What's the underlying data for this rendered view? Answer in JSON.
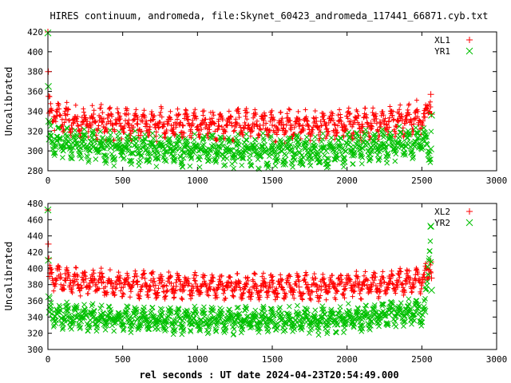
{
  "title": "HIRES continuum, andromeda, file:Skynet_60423_andromeda_117441_66871.cyb.txt",
  "xlabel": "rel seconds : UT date 2024-04-23T20:54:49.000",
  "colors": {
    "red": "#ff0000",
    "green": "#00c000",
    "frame": "#000000"
  },
  "chart_data": [
    {
      "type": "scatter",
      "ylabel": "Uncalibrated",
      "xlim": [
        0,
        3000
      ],
      "ylim": [
        280,
        420
      ],
      "xticks": [
        0,
        500,
        1000,
        1500,
        2000,
        2500,
        3000
      ],
      "yticks": [
        280,
        300,
        320,
        340,
        360,
        380,
        400,
        420
      ],
      "legend_position": "top-right",
      "grid": false,
      "series": [
        {
          "name": "XL1",
          "marker": "plus",
          "color": "#ff0000",
          "x": [
            0,
            3,
            6,
            10,
            60,
            120,
            180,
            240,
            300,
            360,
            420,
            480,
            540,
            600,
            660,
            720,
            780,
            840,
            900,
            960,
            1020,
            1080,
            1140,
            1200,
            1260,
            1320,
            1380,
            1440,
            1500,
            1560,
            1620,
            1680,
            1740,
            1800,
            1860,
            1920,
            1980,
            2040,
            2100,
            2160,
            2220,
            2280,
            2340,
            2400,
            2460,
            2520,
            2560,
            2565
          ],
          "y": [
            420,
            380,
            355,
            338,
            335,
            332,
            331,
            330,
            329,
            329,
            328,
            328,
            327,
            327,
            327,
            327,
            327,
            326,
            326,
            326,
            326,
            326,
            325,
            326,
            326,
            326,
            325,
            326,
            326,
            326,
            326,
            325,
            325,
            325,
            326,
            326,
            326,
            327,
            327,
            328,
            329,
            330,
            331,
            332,
            333,
            334,
            357,
            337
          ]
        },
        {
          "name": "YR1",
          "marker": "cross",
          "color": "#00c000",
          "x": [
            0,
            3,
            6,
            10,
            60,
            120,
            180,
            240,
            300,
            360,
            420,
            480,
            540,
            600,
            660,
            720,
            780,
            840,
            900,
            960,
            1020,
            1080,
            1140,
            1200,
            1260,
            1320,
            1380,
            1440,
            1500,
            1560,
            1620,
            1680,
            1740,
            1800,
            1860,
            1920,
            1980,
            2040,
            2100,
            2160,
            2220,
            2280,
            2340,
            2400,
            2460,
            2520,
            2560,
            2565
          ],
          "y": [
            419,
            365,
            330,
            312,
            310,
            307,
            306,
            305,
            304,
            304,
            303,
            303,
            302,
            302,
            302,
            302,
            302,
            301,
            301,
            301,
            301,
            301,
            300,
            300,
            300,
            300,
            299,
            300,
            300,
            300,
            300,
            299,
            299,
            299,
            300,
            300,
            301,
            302,
            303,
            304,
            305,
            306,
            307,
            308,
            309,
            310,
            302,
            336
          ]
        }
      ]
    },
    {
      "type": "scatter",
      "ylabel": "Uncalibrated",
      "xlim": [
        0,
        3000
      ],
      "ylim": [
        300,
        480
      ],
      "xticks": [
        0,
        500,
        1000,
        1500,
        2000,
        2500,
        3000
      ],
      "yticks": [
        300,
        320,
        340,
        360,
        380,
        400,
        420,
        440,
        460,
        480
      ],
      "legend_position": "top-right",
      "grid": false,
      "series": [
        {
          "name": "XL2",
          "marker": "plus",
          "color": "#ff0000",
          "x": [
            0,
            3,
            6,
            10,
            60,
            120,
            180,
            240,
            300,
            360,
            420,
            480,
            540,
            600,
            660,
            720,
            780,
            840,
            900,
            960,
            1020,
            1080,
            1140,
            1200,
            1260,
            1320,
            1380,
            1440,
            1500,
            1560,
            1620,
            1680,
            1740,
            1800,
            1860,
            1920,
            1980,
            2040,
            2100,
            2160,
            2220,
            2280,
            2340,
            2400,
            2460,
            2520,
            2560,
            2565
          ],
          "y": [
            472,
            430,
            412,
            390,
            388,
            385,
            384,
            383,
            382,
            382,
            381,
            381,
            380,
            380,
            379,
            379,
            379,
            378,
            378,
            378,
            378,
            377,
            377,
            377,
            377,
            377,
            377,
            377,
            377,
            377,
            377,
            377,
            377,
            377,
            377,
            378,
            378,
            379,
            379,
            380,
            381,
            382,
            383,
            384,
            385,
            386,
            408,
            388
          ]
        },
        {
          "name": "YR2",
          "marker": "cross",
          "color": "#00c000",
          "x": [
            0,
            3,
            6,
            10,
            60,
            120,
            180,
            240,
            300,
            360,
            420,
            480,
            540,
            600,
            660,
            720,
            780,
            840,
            900,
            960,
            1020,
            1080,
            1140,
            1200,
            1260,
            1320,
            1380,
            1440,
            1500,
            1560,
            1620,
            1680,
            1740,
            1800,
            1860,
            1920,
            1980,
            2040,
            2100,
            2160,
            2220,
            2280,
            2340,
            2400,
            2460,
            2520,
            2560,
            2565
          ],
          "y": [
            472,
            410,
            365,
            346,
            344,
            342,
            341,
            340,
            339,
            339,
            338,
            338,
            338,
            337,
            337,
            337,
            337,
            336,
            336,
            336,
            336,
            336,
            336,
            336,
            336,
            336,
            336,
            336,
            336,
            336,
            336,
            336,
            336,
            336,
            336,
            337,
            338,
            339,
            340,
            341,
            342,
            343,
            344,
            345,
            346,
            347,
            452,
            373
          ]
        }
      ]
    }
  ]
}
